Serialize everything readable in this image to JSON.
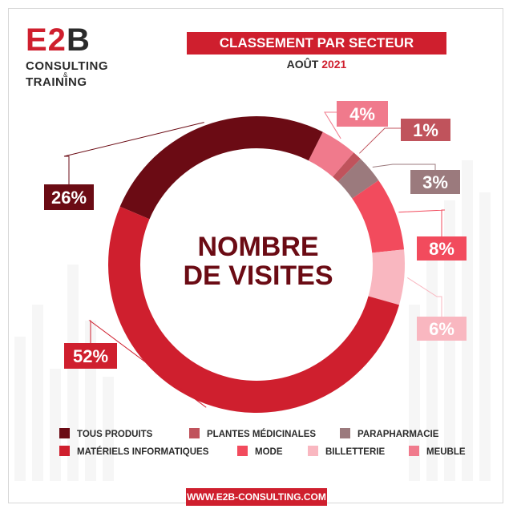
{
  "logo": {
    "e2b_red": "E2",
    "e2b_dark": "B",
    "consulting": "CONSULTING",
    "amp": "&",
    "training": "TRAINING"
  },
  "header": {
    "title": "CLASSEMENT PAR SECTEUR",
    "month": "AOÛT",
    "year": "2021"
  },
  "center_label": {
    "line1": "NOMBRE",
    "line2": "DE VISITES"
  },
  "footer": {
    "url": "WWW.E2B-CONSULTING.COM"
  },
  "chart_data": {
    "type": "pie",
    "title": "CLASSEMENT PAR SECTEUR",
    "subtitle": "AOÛT 2021",
    "donut": true,
    "slices": [
      {
        "label": "TOUS PRODUITS",
        "value": 26,
        "value_label": "26%",
        "color": "#6b0b14"
      },
      {
        "label": "MEUBLE",
        "value": 4,
        "value_label": "4%",
        "color": "#f07a8c"
      },
      {
        "label": "PLANTES MÉDICINALES",
        "value": 1,
        "value_label": "1%",
        "color": "#c0535c"
      },
      {
        "label": "PARAPHARMACIE",
        "value": 3,
        "value_label": "3%",
        "color": "#9b7a7d"
      },
      {
        "label": "MODE",
        "value": 8,
        "value_label": "8%",
        "color": "#f24b5d"
      },
      {
        "label": "BILLETTERIE",
        "value": 6,
        "value_label": "6%",
        "color": "#f9b7c0"
      },
      {
        "label": "MATÉRIELS INFORMATIQUES",
        "value": 52,
        "value_label": "52%",
        "color": "#cf1f2e"
      }
    ],
    "legend": [
      {
        "label": "TOUS PRODUITS",
        "color": "#6b0b14"
      },
      {
        "label": "PLANTES MÉDICINALES",
        "color": "#c0535c"
      },
      {
        "label": "PARAPHARMACIE",
        "color": "#9b7a7d"
      },
      {
        "label": "MATÉRIELS INFORMATIQUES",
        "color": "#cf1f2e"
      },
      {
        "label": "MODE",
        "color": "#f24b5d"
      },
      {
        "label": "BILLETTERIE",
        "color": "#f9b7c0"
      },
      {
        "label": "MEUBLE",
        "color": "#f07a8c"
      }
    ],
    "legend_placement": "bottom"
  }
}
